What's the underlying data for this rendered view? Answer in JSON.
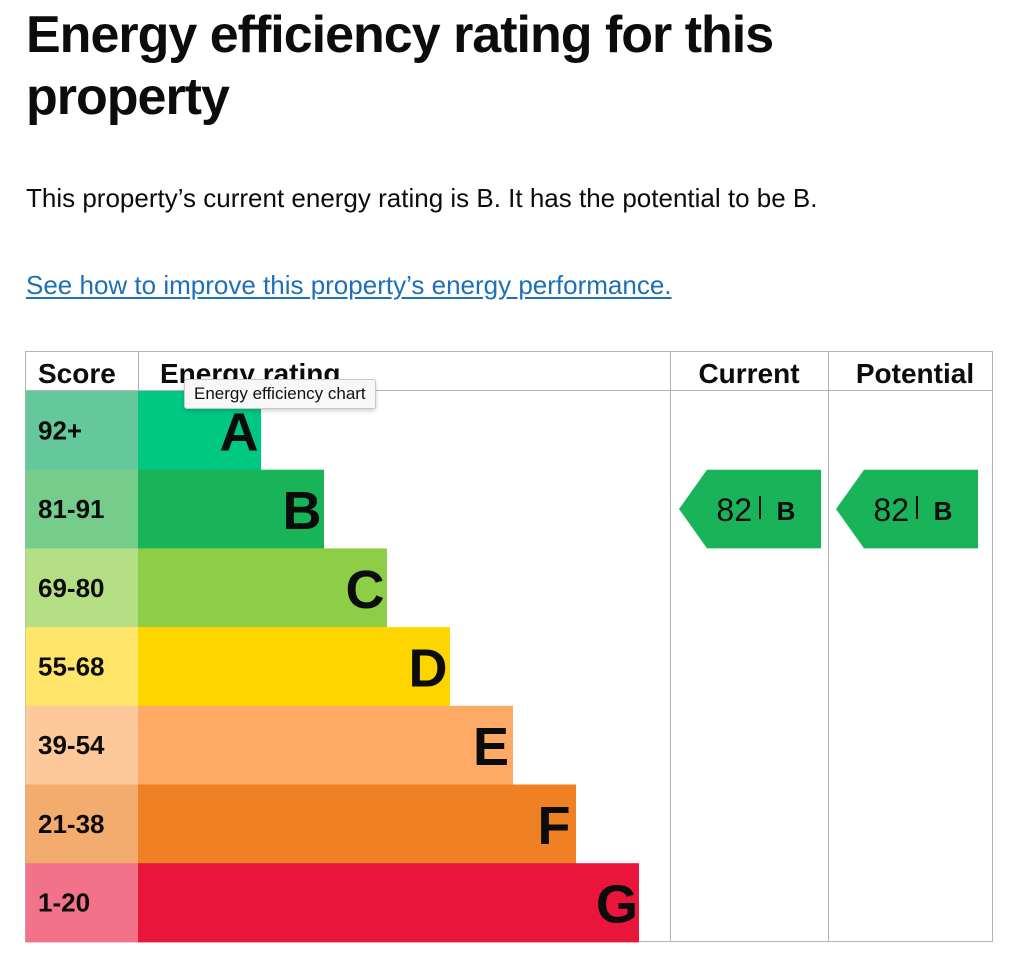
{
  "page": {
    "title": "Energy efficiency rating for this property",
    "summary": "This property’s current energy rating is B. It has the potential to be B.",
    "improve_link": "See how to improve this property’s energy performance."
  },
  "tooltip": "Energy efficiency chart",
  "chart_data": {
    "type": "bar",
    "headers": [
      "Score",
      "Energy rating",
      "Current",
      "Potential"
    ],
    "bands": [
      {
        "score": "92+",
        "letter": "A",
        "band_color": "#00c781",
        "score_color": "#64c89c"
      },
      {
        "score": "81-91",
        "letter": "B",
        "band_color": "#19b459",
        "score_color": "#75cc8b"
      },
      {
        "score": "69-80",
        "letter": "C",
        "band_color": "#8dce46",
        "score_color": "#b4de84"
      },
      {
        "score": "55-68",
        "letter": "D",
        "band_color": "#ffd500",
        "score_color": "#ffe56a"
      },
      {
        "score": "39-54",
        "letter": "E",
        "band_color": "#fcaa65",
        "score_color": "#fdc89a"
      },
      {
        "score": "21-38",
        "letter": "F",
        "band_color": "#ef8023",
        "score_color": "#f4ab6e"
      },
      {
        "score": "1-20",
        "letter": "G",
        "band_color": "#e9153b",
        "score_color": "#f27389"
      }
    ],
    "current": {
      "value": 82,
      "rating": "B",
      "color": "#19b459"
    },
    "potential": {
      "value": 82,
      "rating": "B",
      "color": "#19b459"
    }
  }
}
